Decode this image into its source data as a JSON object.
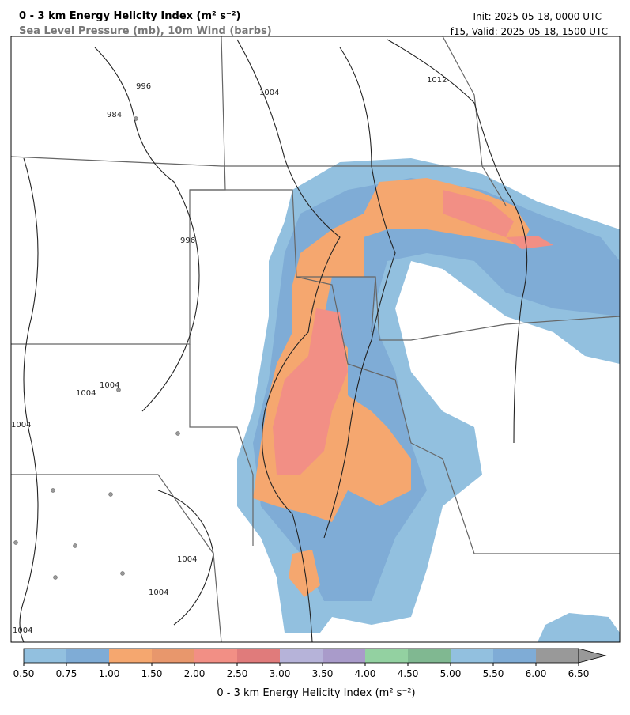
{
  "header": {
    "title": "0 - 3 km Energy Helicity Index (m² s⁻²)",
    "subtitle": "Sea Level Pressure (mb), 10m Wind (barbs)",
    "init": "Init: 2025-05-18, 0000 UTC",
    "valid": "f15, Valid: 2025-05-18, 1500 UTC"
  },
  "map": {
    "contour_labels": [
      "984",
      "996",
      "1004",
      "1012",
      "996",
      "1004",
      "1004",
      "1004",
      "1004",
      "1004",
      "1004"
    ]
  },
  "colorbar": {
    "label": "0 - 3 km Energy Helicity Index (m² s⁻²)",
    "ticks": [
      {
        "value": 0.5,
        "label": "0.50"
      },
      {
        "value": 0.75,
        "label": "0.75"
      },
      {
        "value": 1,
        "label": "1.00"
      },
      {
        "value": 1.5,
        "label": "1.50"
      },
      {
        "value": 2,
        "label": "2.00"
      },
      {
        "value": 2.5,
        "label": "2.50"
      },
      {
        "value": 3,
        "label": "3.00"
      },
      {
        "value": 3.5,
        "label": "3.50"
      },
      {
        "value": 4,
        "label": "4.00"
      },
      {
        "value": 4.5,
        "label": "4.50"
      },
      {
        "value": 5,
        "label": "5.00"
      },
      {
        "value": 5.5,
        "label": "5.50"
      },
      {
        "value": 6,
        "label": "6.00"
      },
      {
        "value": 6.5,
        "label": "6.50"
      }
    ],
    "colors": [
      "#92c0df",
      "#7facd6",
      "#f5a76f",
      "#e8976c",
      "#f28f85",
      "#e07b7b",
      "#b6b3d9",
      "#a99bca",
      "#93d1a1",
      "#80b891",
      "#92c0df",
      "#7facd6",
      "#999999"
    ],
    "extend_color": "#999999"
  }
}
